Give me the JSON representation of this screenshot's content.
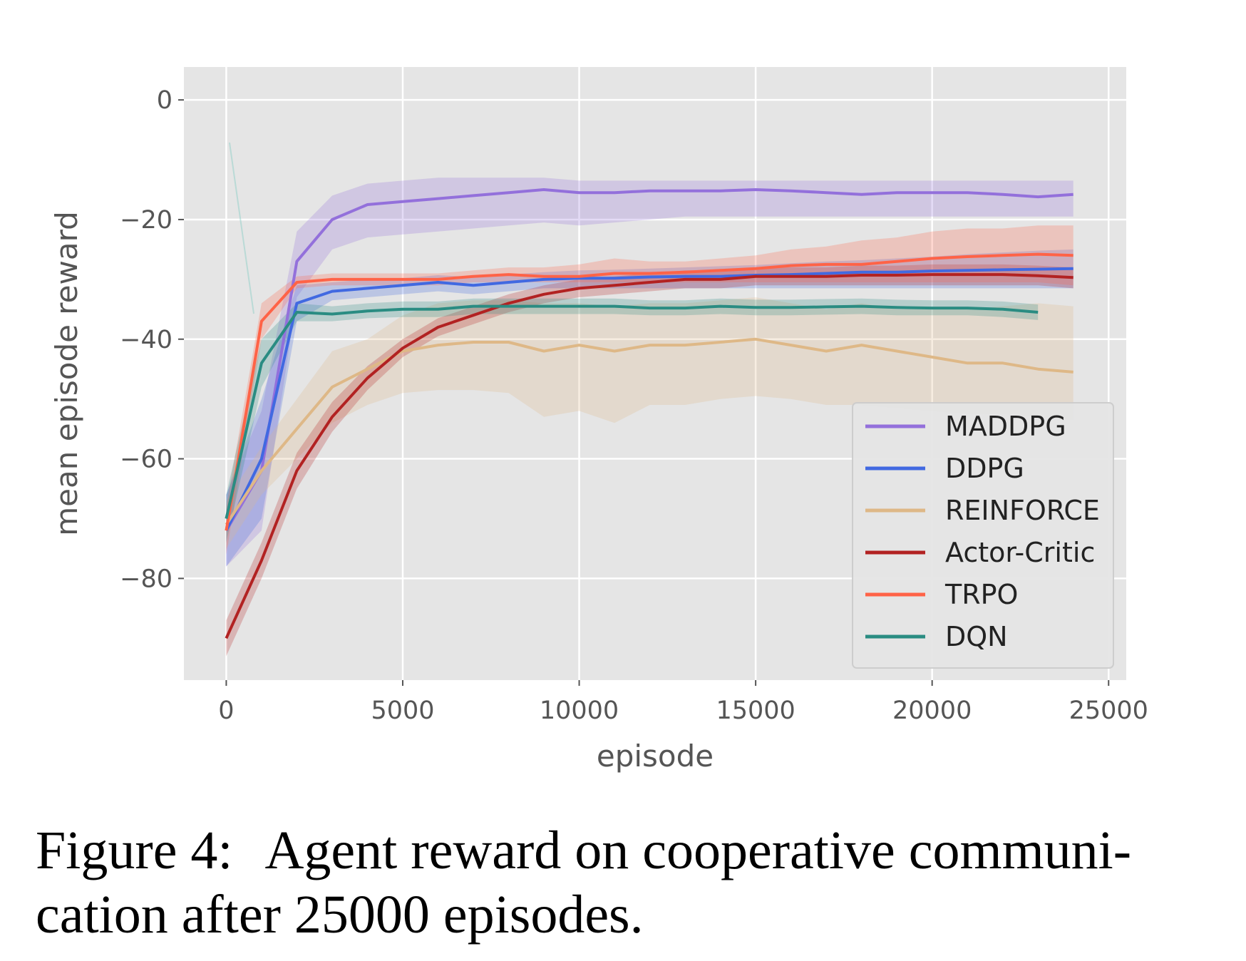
{
  "caption": {
    "label": "Figure 4:",
    "text": "Agent reward on cooperative communi- cation after 25000 episodes."
  },
  "chart_data": {
    "type": "line",
    "xlabel": "episode",
    "ylabel": "mean episode reward",
    "xlim": [
      -1200,
      25500
    ],
    "ylim": [
      -97,
      5.5
    ],
    "xticks": [
      0,
      5000,
      10000,
      15000,
      20000,
      25000
    ],
    "yticks": [
      0,
      -20,
      -40,
      -60,
      -80
    ],
    "xtick_labels": [
      "0",
      "5000",
      "10000",
      "15000",
      "20000",
      "25000"
    ],
    "ytick_labels": [
      "0",
      "−20",
      "−40",
      "−60",
      "−80"
    ],
    "grid": true,
    "background": "#e5e5e5",
    "legend_position": "lower-right",
    "series": [
      {
        "name": "MADDPG",
        "color": "#9370db",
        "x": [
          0,
          1000,
          2000,
          3000,
          4000,
          5000,
          6000,
          7000,
          8000,
          9000,
          10000,
          11000,
          12000,
          13000,
          14000,
          15000,
          16000,
          17000,
          18000,
          19000,
          20000,
          21000,
          22000,
          23000,
          24000
        ],
        "y": [
          -72,
          -62,
          -27,
          -20,
          -17.5,
          -17,
          -16.5,
          -16,
          -15.5,
          -15,
          -15.5,
          -15.5,
          -15.2,
          -15.2,
          -15.2,
          -15,
          -15.2,
          -15.5,
          -15.8,
          -15.5,
          -15.5,
          -15.5,
          -15.8,
          -16.2,
          -15.8
        ],
        "lower": [
          -78,
          -72,
          -33,
          -25,
          -23,
          -22.5,
          -22,
          -21.5,
          -21,
          -20.5,
          -21,
          -20.5,
          -20,
          -19.5,
          -19.5,
          -19.5,
          -19.5,
          -19.5,
          -19.5,
          -19.5,
          -19.5,
          -19.5,
          -19.5,
          -19.5,
          -19.5
        ],
        "upper": [
          -66,
          -52,
          -22,
          -16,
          -14,
          -13.5,
          -13,
          -13,
          -13,
          -13,
          -13.5,
          -13.5,
          -13.5,
          -13.5,
          -13.5,
          -13.5,
          -13.5,
          -13.5,
          -13.5,
          -13.5,
          -13.5,
          -13.5,
          -13.5,
          -13.5,
          -13.5
        ]
      },
      {
        "name": "DDPG",
        "color": "#4169e1",
        "x": [
          0,
          1000,
          2000,
          3000,
          4000,
          5000,
          6000,
          7000,
          8000,
          9000,
          10000,
          11000,
          12000,
          13000,
          14000,
          15000,
          16000,
          17000,
          18000,
          19000,
          20000,
          21000,
          22000,
          23000,
          24000
        ],
        "y": [
          -72,
          -60,
          -34,
          -32,
          -31.5,
          -31,
          -30.5,
          -31,
          -30.5,
          -30,
          -29.8,
          -29.8,
          -29.6,
          -29.5,
          -29.5,
          -29.3,
          -29.2,
          -29,
          -28.8,
          -28.8,
          -28.6,
          -28.5,
          -28.4,
          -28.3,
          -28.2
        ],
        "lower": [
          -78,
          -70,
          -37,
          -33.5,
          -33,
          -32.5,
          -32,
          -32.5,
          -32,
          -31.5,
          -31.5,
          -31.5,
          -31.5,
          -31.5,
          -31.5,
          -31.5,
          -31.5,
          -31.5,
          -31.5,
          -31.5,
          -31.5,
          -31.5,
          -31.5,
          -31.5,
          -31.5
        ],
        "upper": [
          -66,
          -50,
          -31,
          -30.5,
          -30,
          -29.8,
          -29.3,
          -29.6,
          -29.2,
          -28.8,
          -28.5,
          -28.4,
          -28.2,
          -28,
          -27.8,
          -27.6,
          -27.3,
          -27,
          -26.8,
          -26.5,
          -26.2,
          -25.8,
          -25.5,
          -25.2,
          -25
        ]
      },
      {
        "name": "REINFORCE",
        "color": "#deb887",
        "x": [
          0,
          1000,
          2000,
          3000,
          4000,
          5000,
          6000,
          7000,
          8000,
          9000,
          10000,
          11000,
          12000,
          13000,
          14000,
          15000,
          16000,
          17000,
          18000,
          19000,
          20000,
          21000,
          22000,
          23000,
          24000
        ],
        "y": [
          -71,
          -62,
          -55,
          -48,
          -45,
          -42,
          -41,
          -40.5,
          -40.5,
          -42,
          -41,
          -42,
          -41,
          -41,
          -40.5,
          -40,
          -41,
          -42,
          -41,
          -42,
          -43,
          -44,
          -44,
          -45,
          -45.5
        ],
        "lower": [
          -75,
          -66,
          -60,
          -54,
          -51,
          -49,
          -48.5,
          -48.5,
          -49,
          -53,
          -52,
          -54,
          -51,
          -51,
          -50,
          -49.5,
          -50,
          -51,
          -51,
          -51.5,
          -52,
          -52.5,
          -52.5,
          -53,
          -53.5
        ],
        "upper": [
          -67,
          -58,
          -50,
          -42,
          -40,
          -36,
          -34,
          -33.5,
          -33.5,
          -34,
          -34,
          -34.5,
          -34,
          -34,
          -33.5,
          -33,
          -34,
          -35,
          -34,
          -35,
          -35,
          -35,
          -34.5,
          -34,
          -34.5
        ]
      },
      {
        "name": "Actor-Critic",
        "color": "#b22222",
        "x": [
          0,
          1000,
          2000,
          3000,
          4000,
          5000,
          6000,
          7000,
          8000,
          9000,
          10000,
          11000,
          12000,
          13000,
          14000,
          15000,
          16000,
          17000,
          18000,
          19000,
          20000,
          21000,
          22000,
          23000,
          24000
        ],
        "y": [
          -90,
          -77,
          -62,
          -53,
          -46.5,
          -41.5,
          -38,
          -36,
          -34,
          -32.5,
          -31.5,
          -31,
          -30.5,
          -30,
          -30,
          -29.5,
          -29.5,
          -29.5,
          -29.3,
          -29.3,
          -29.2,
          -29.2,
          -29.2,
          -29.4,
          -29.7
        ],
        "lower": [
          -93,
          -80,
          -65,
          -55.5,
          -48.5,
          -43,
          -39.5,
          -37.5,
          -35.5,
          -34,
          -33,
          -32.5,
          -32,
          -31.5,
          -31.5,
          -31,
          -31,
          -31,
          -31,
          -31,
          -31,
          -31,
          -31,
          -31,
          -31.5
        ],
        "upper": [
          -87,
          -74,
          -59,
          -50.5,
          -44.5,
          -40,
          -36.5,
          -34.5,
          -32.5,
          -31,
          -30,
          -29.5,
          -29,
          -28.5,
          -28.5,
          -28,
          -28,
          -28,
          -27.7,
          -27.7,
          -27.5,
          -27.5,
          -27.5,
          -27.7,
          -28
        ]
      },
      {
        "name": "TRPO",
        "color": "#ff6347",
        "x": [
          0,
          1000,
          2000,
          3000,
          4000,
          5000,
          6000,
          7000,
          8000,
          9000,
          10000,
          11000,
          12000,
          13000,
          14000,
          15000,
          16000,
          17000,
          18000,
          19000,
          20000,
          21000,
          22000,
          23000,
          24000
        ],
        "y": [
          -72,
          -37,
          -30.5,
          -30,
          -30,
          -30,
          -30,
          -29.5,
          -29.2,
          -29.5,
          -29.5,
          -29,
          -29,
          -28.8,
          -28.5,
          -28.2,
          -27.7,
          -27.5,
          -27.5,
          -27,
          -26.5,
          -26.2,
          -26,
          -25.8,
          -26
        ],
        "lower": [
          -76,
          -40,
          -31.5,
          -31,
          -31,
          -31,
          -31,
          -30.5,
          -30.5,
          -30.5,
          -30.5,
          -30.5,
          -30.5,
          -30.5,
          -30.5,
          -30.5,
          -30.5,
          -30.5,
          -30.5,
          -30.5,
          -30.5,
          -30.5,
          -30.5,
          -30.5,
          -31
        ],
        "upper": [
          -68,
          -34,
          -29.5,
          -29,
          -29,
          -29,
          -29,
          -28.5,
          -28,
          -28,
          -27.5,
          -26.5,
          -27,
          -27,
          -26.5,
          -26,
          -25,
          -24.5,
          -23.5,
          -23,
          -22,
          -21.5,
          -21.5,
          -21,
          -21
        ]
      },
      {
        "name": "DQN",
        "color": "#2a8c82",
        "x": [
          0,
          1000,
          2000,
          3000,
          4000,
          5000,
          6000,
          7000,
          8000,
          9000,
          10000,
          11000,
          12000,
          13000,
          14000,
          15000,
          16000,
          17000,
          18000,
          19000,
          20000,
          21000,
          22000,
          23000
        ],
        "y": [
          -70,
          -44,
          -35.5,
          -35.8,
          -35.3,
          -35,
          -35,
          -34.5,
          -34.5,
          -34.5,
          -34.5,
          -34.5,
          -34.8,
          -34.8,
          -34.5,
          -34.7,
          -34.7,
          -34.6,
          -34.5,
          -34.7,
          -34.8,
          -34.8,
          -35,
          -35.5
        ],
        "lower": [
          -74,
          -48,
          -37,
          -37,
          -36.5,
          -36.3,
          -36.3,
          -35.8,
          -35.8,
          -35.8,
          -35.8,
          -35.8,
          -36,
          -36,
          -35.8,
          -36,
          -36,
          -35.9,
          -35.8,
          -36,
          -36,
          -36,
          -36.3,
          -36.8
        ],
        "upper": [
          -66,
          -40,
          -34,
          -34.5,
          -34,
          -33.7,
          -33.7,
          -33.2,
          -33.2,
          -33.2,
          -33.2,
          -33.2,
          -33.5,
          -33.5,
          -33.2,
          -33.4,
          -33.4,
          -33.3,
          -33.2,
          -33.4,
          -33.5,
          -33.5,
          -33.7,
          -34.2
        ]
      }
    ]
  }
}
